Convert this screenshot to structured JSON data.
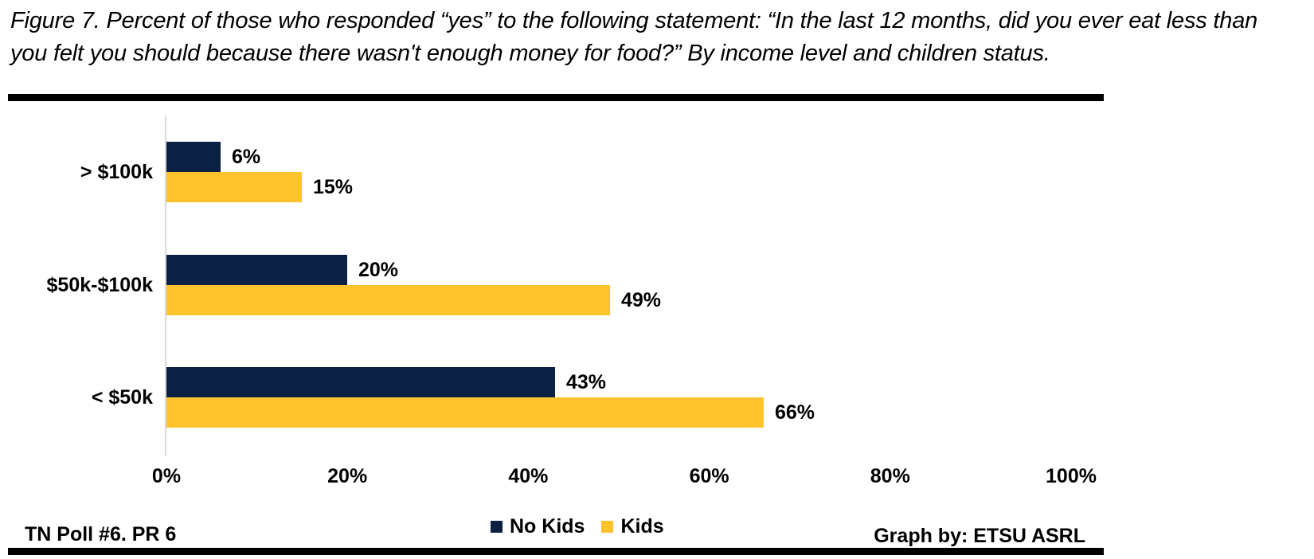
{
  "figure": {
    "title_lines": [
      "Figure 7. Percent of those who responded “yes” to the following statement: “In the last 12 months, did you ever eat less than",
      "you felt you should because there wasn't enough money for food?” By income level and children status."
    ]
  },
  "chart_data": {
    "type": "bar",
    "orientation": "horizontal",
    "title": "",
    "xlabel": "",
    "ylabel": "",
    "categories": [
      "> $100k",
      "$50k-$100k",
      "< $50k"
    ],
    "series": [
      {
        "name": "No Kids",
        "color": "#0A2144",
        "values": [
          6,
          20,
          43
        ]
      },
      {
        "name": "Kids",
        "color": "#FDC32D",
        "values": [
          15,
          49,
          66
        ]
      }
    ],
    "value_suffix": "%",
    "xlim": [
      0,
      100
    ],
    "x_tick_labels": [
      "0%",
      "20%",
      "40%",
      "60%",
      "80%",
      "100%"
    ],
    "grid": false,
    "legend_position": "bottom-center",
    "axis_line_color": "#D9D9D9"
  },
  "legend": {
    "items": [
      {
        "label": "No Kids",
        "color": "#0A2144"
      },
      {
        "label": "Kids",
        "color": "#FDC32D"
      }
    ]
  },
  "footer": {
    "left": "TN Poll #6. PR 6",
    "right": "Graph by: ETSU ASRL"
  }
}
